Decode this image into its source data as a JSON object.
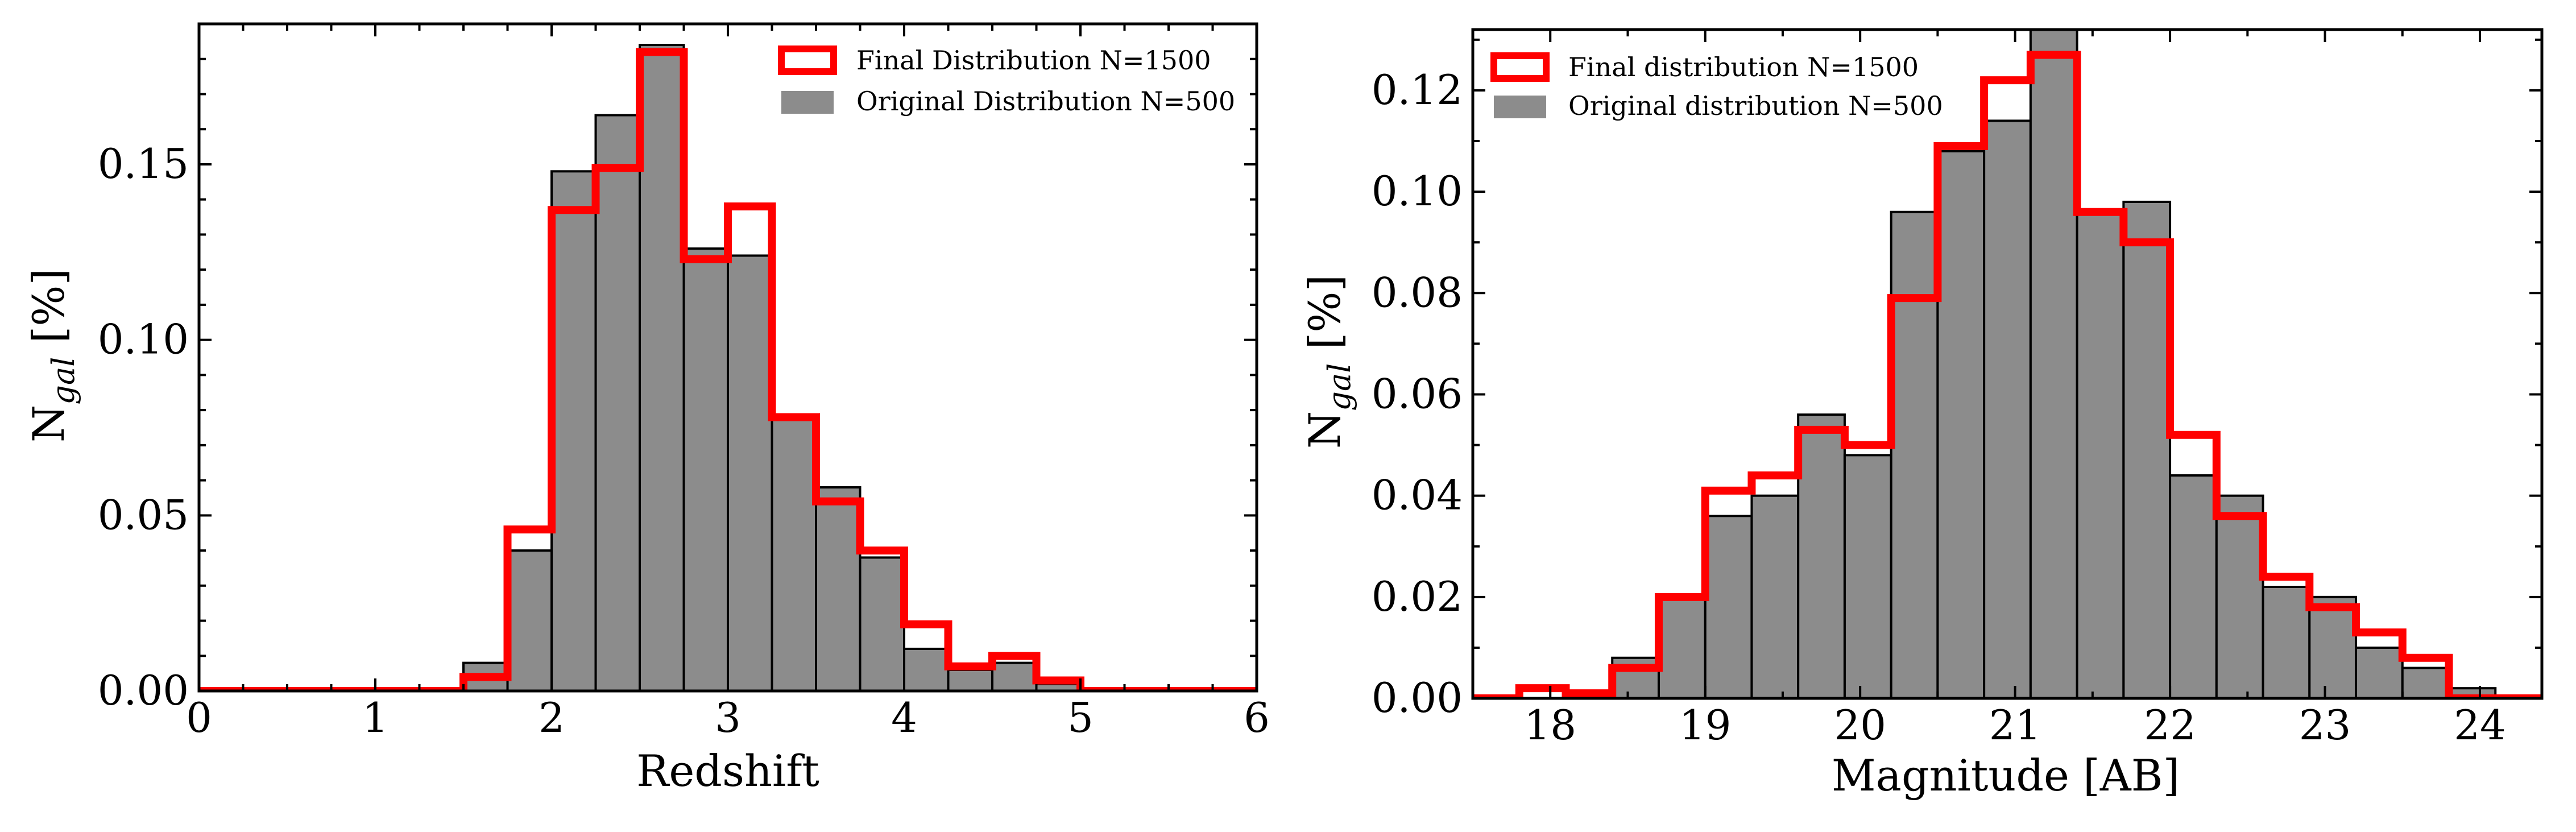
{
  "chart_data": [
    {
      "type": "bar",
      "xlabel": "Redshift",
      "ylabel": "N",
      "ylabel_sub": "gal",
      "ylabel_unit": " [%]",
      "xlim": [
        0,
        6
      ],
      "ylim": [
        0,
        0.19
      ],
      "xticks": [
        0,
        1,
        2,
        3,
        4,
        5,
        6
      ],
      "xtick_labels": [
        "0",
        "1",
        "2",
        "3",
        "4",
        "5",
        "6"
      ],
      "yticks": [
        0.0,
        0.05,
        0.1,
        0.15
      ],
      "ytick_labels": [
        "0.00",
        "0.05",
        "0.10",
        "0.15"
      ],
      "legend": {
        "position": "top-right",
        "entries": [
          "Final Distribution N=1500",
          "Original Distribution N=500"
        ]
      },
      "series": [
        {
          "name": "Final Distribution N=1500",
          "style": "step-outline",
          "bin_edges": [
            0,
            0.25,
            0.5,
            0.75,
            1.0,
            1.25,
            1.5,
            1.75,
            2.0,
            2.25,
            2.5,
            2.75,
            3.0,
            3.25,
            3.5,
            3.75,
            4.0,
            4.25,
            4.5,
            4.75,
            5.0,
            5.25,
            5.5,
            5.75
          ],
          "values": [
            0,
            0,
            0,
            0,
            0,
            0,
            0.004,
            0.046,
            0.137,
            0.149,
            0.182,
            0.123,
            0.138,
            0.078,
            0.054,
            0.04,
            0.019,
            0.007,
            0.01,
            0.003,
            0,
            0,
            0
          ]
        },
        {
          "name": "Original Distribution N=500",
          "style": "filled",
          "bin_edges": [
            0,
            0.25,
            0.5,
            0.75,
            1.0,
            1.25,
            1.5,
            1.75,
            2.0,
            2.25,
            2.5,
            2.75,
            3.0,
            3.25,
            3.5,
            3.75,
            4.0,
            4.25,
            4.5,
            4.75,
            5.0,
            5.25,
            5.5,
            5.75
          ],
          "values": [
            0,
            0,
            0,
            0,
            0,
            0,
            0.008,
            0.04,
            0.148,
            0.164,
            0.184,
            0.126,
            0.124,
            0.078,
            0.058,
            0.038,
            0.012,
            0.006,
            0.008,
            0.002,
            0,
            0,
            0
          ]
        }
      ]
    },
    {
      "type": "bar",
      "xlabel": "Magnitude [AB]",
      "ylabel": "N",
      "ylabel_sub": "gal",
      "ylabel_unit": " [%]",
      "xlim": [
        17.5,
        24.4
      ],
      "ylim": [
        0,
        0.132
      ],
      "xticks": [
        18,
        19,
        20,
        21,
        22,
        23,
        24
      ],
      "xtick_labels": [
        "18",
        "19",
        "20",
        "21",
        "22",
        "23",
        "24"
      ],
      "yticks": [
        0.0,
        0.02,
        0.04,
        0.06,
        0.08,
        0.1,
        0.12
      ],
      "ytick_labels": [
        "0.00",
        "0.02",
        "0.04",
        "0.06",
        "0.08",
        "0.10",
        "0.12"
      ],
      "legend": {
        "position": "top-left",
        "entries": [
          "Final distribution N=1500",
          "Original distribution N=500"
        ]
      },
      "series": [
        {
          "name": "Final distribution N=1500",
          "style": "step-outline",
          "bin_edges": [
            17.5,
            17.8,
            18.1,
            18.4,
            18.7,
            19.0,
            19.3,
            19.6,
            19.9,
            20.2,
            20.5,
            20.8,
            21.1,
            21.4,
            21.7,
            22.0,
            22.3,
            22.6,
            22.9,
            23.2,
            23.5,
            23.8,
            24.1,
            24.4
          ],
          "values": [
            0,
            0.002,
            0.001,
            0.006,
            0.02,
            0.041,
            0.044,
            0.053,
            0.05,
            0.079,
            0.109,
            0.122,
            0.127,
            0.096,
            0.09,
            0.052,
            0.036,
            0.024,
            0.018,
            0.013,
            0.008,
            0,
            0
          ]
        },
        {
          "name": "Original distribution N=500",
          "style": "filled",
          "bin_edges": [
            17.5,
            17.8,
            18.1,
            18.4,
            18.7,
            19.0,
            19.3,
            19.6,
            19.9,
            20.2,
            20.5,
            20.8,
            21.1,
            21.4,
            21.7,
            22.0,
            22.3,
            22.6,
            22.9,
            23.2,
            23.5,
            23.8,
            24.1,
            24.4
          ],
          "values": [
            0,
            0,
            0,
            0.008,
            0.02,
            0.036,
            0.04,
            0.056,
            0.048,
            0.096,
            0.108,
            0.114,
            0.134,
            0.096,
            0.098,
            0.044,
            0.04,
            0.022,
            0.02,
            0.01,
            0.006,
            0.002,
            0
          ]
        }
      ]
    }
  ],
  "colors": {
    "final": "#ff0000",
    "original_fill": "#8c8c8c",
    "original_edge": "#000000",
    "axes": "#000000",
    "background": "#ffffff"
  }
}
